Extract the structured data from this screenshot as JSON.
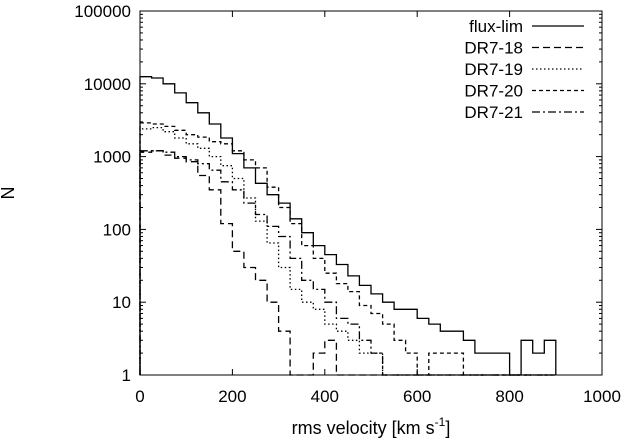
{
  "chart_data": {
    "type": "line",
    "subtype": "histogram-step",
    "xlabel_main": "rms velocity [km s",
    "xlabel_sup": "-1",
    "xlabel_end": "]",
    "ylabel": "N",
    "xlim": [
      0,
      1000
    ],
    "ylim": [
      1,
      100000
    ],
    "yscale": "log",
    "xticks": [
      "0",
      "200",
      "400",
      "600",
      "800",
      "1000"
    ],
    "yticks": [
      "1",
      "10",
      "100",
      "1000",
      "10000",
      "100000"
    ],
    "grid": false,
    "legend_position": "top-right",
    "bin_edges": [
      0,
      25,
      50,
      75,
      100,
      125,
      150,
      175,
      200,
      225,
      250,
      275,
      300,
      325,
      350,
      375,
      400,
      425,
      450,
      475,
      500,
      525,
      550,
      575,
      600,
      625,
      650,
      675,
      700,
      725,
      750,
      775,
      800,
      825,
      850,
      875,
      900
    ],
    "series": [
      {
        "name": "flux-lim",
        "dash": "",
        "values": [
          12500,
          12000,
          10000,
          7500,
          5500,
          4000,
          2800,
          1800,
          1100,
          700,
          430,
          300,
          230,
          140,
          90,
          60,
          45,
          33,
          23,
          17,
          13,
          10,
          8,
          8,
          6,
          5,
          4,
          4,
          3,
          2,
          2,
          2,
          0,
          3,
          2,
          3,
          0
        ]
      },
      {
        "name": "DR7-18",
        "dash": "7,4",
        "values": [
          1150,
          1200,
          1050,
          950,
          850,
          550,
          350,
          120,
          50,
          30,
          20,
          10,
          4,
          1,
          0,
          2,
          3,
          1,
          0,
          0,
          0,
          0,
          0,
          0,
          0,
          0,
          0,
          0,
          0,
          0,
          0,
          0,
          0,
          0,
          0,
          0,
          0
        ]
      },
      {
        "name": "DR7-19",
        "dash": "1.5,2.5",
        "values": [
          2400,
          2500,
          2200,
          1800,
          1500,
          1300,
          1000,
          750,
          500,
          270,
          130,
          65,
          30,
          15,
          10,
          8,
          5,
          4,
          3,
          2,
          2,
          1,
          0,
          0,
          0,
          0,
          0,
          0,
          0,
          0,
          0,
          0,
          0,
          0,
          0,
          0,
          0
        ]
      },
      {
        "name": "DR7-20",
        "dash": "4,3",
        "values": [
          2900,
          2800,
          2600,
          2300,
          2000,
          1850,
          1600,
          1500,
          1200,
          900,
          700,
          380,
          200,
          120,
          60,
          40,
          25,
          18,
          14,
          9,
          7,
          5,
          3,
          2,
          1,
          2,
          2,
          2,
          0,
          0,
          0,
          0,
          0,
          0,
          0,
          0,
          0
        ]
      },
      {
        "name": "DR7-21",
        "dash": "8,3,2,3",
        "values": [
          1200,
          1200,
          1150,
          1000,
          900,
          800,
          650,
          450,
          350,
          230,
          160,
          110,
          80,
          40,
          20,
          15,
          10,
          6,
          5,
          3,
          2,
          1,
          1,
          0,
          0,
          0,
          0,
          0,
          0,
          0,
          0,
          0,
          0,
          0,
          0,
          0,
          0
        ]
      }
    ]
  }
}
